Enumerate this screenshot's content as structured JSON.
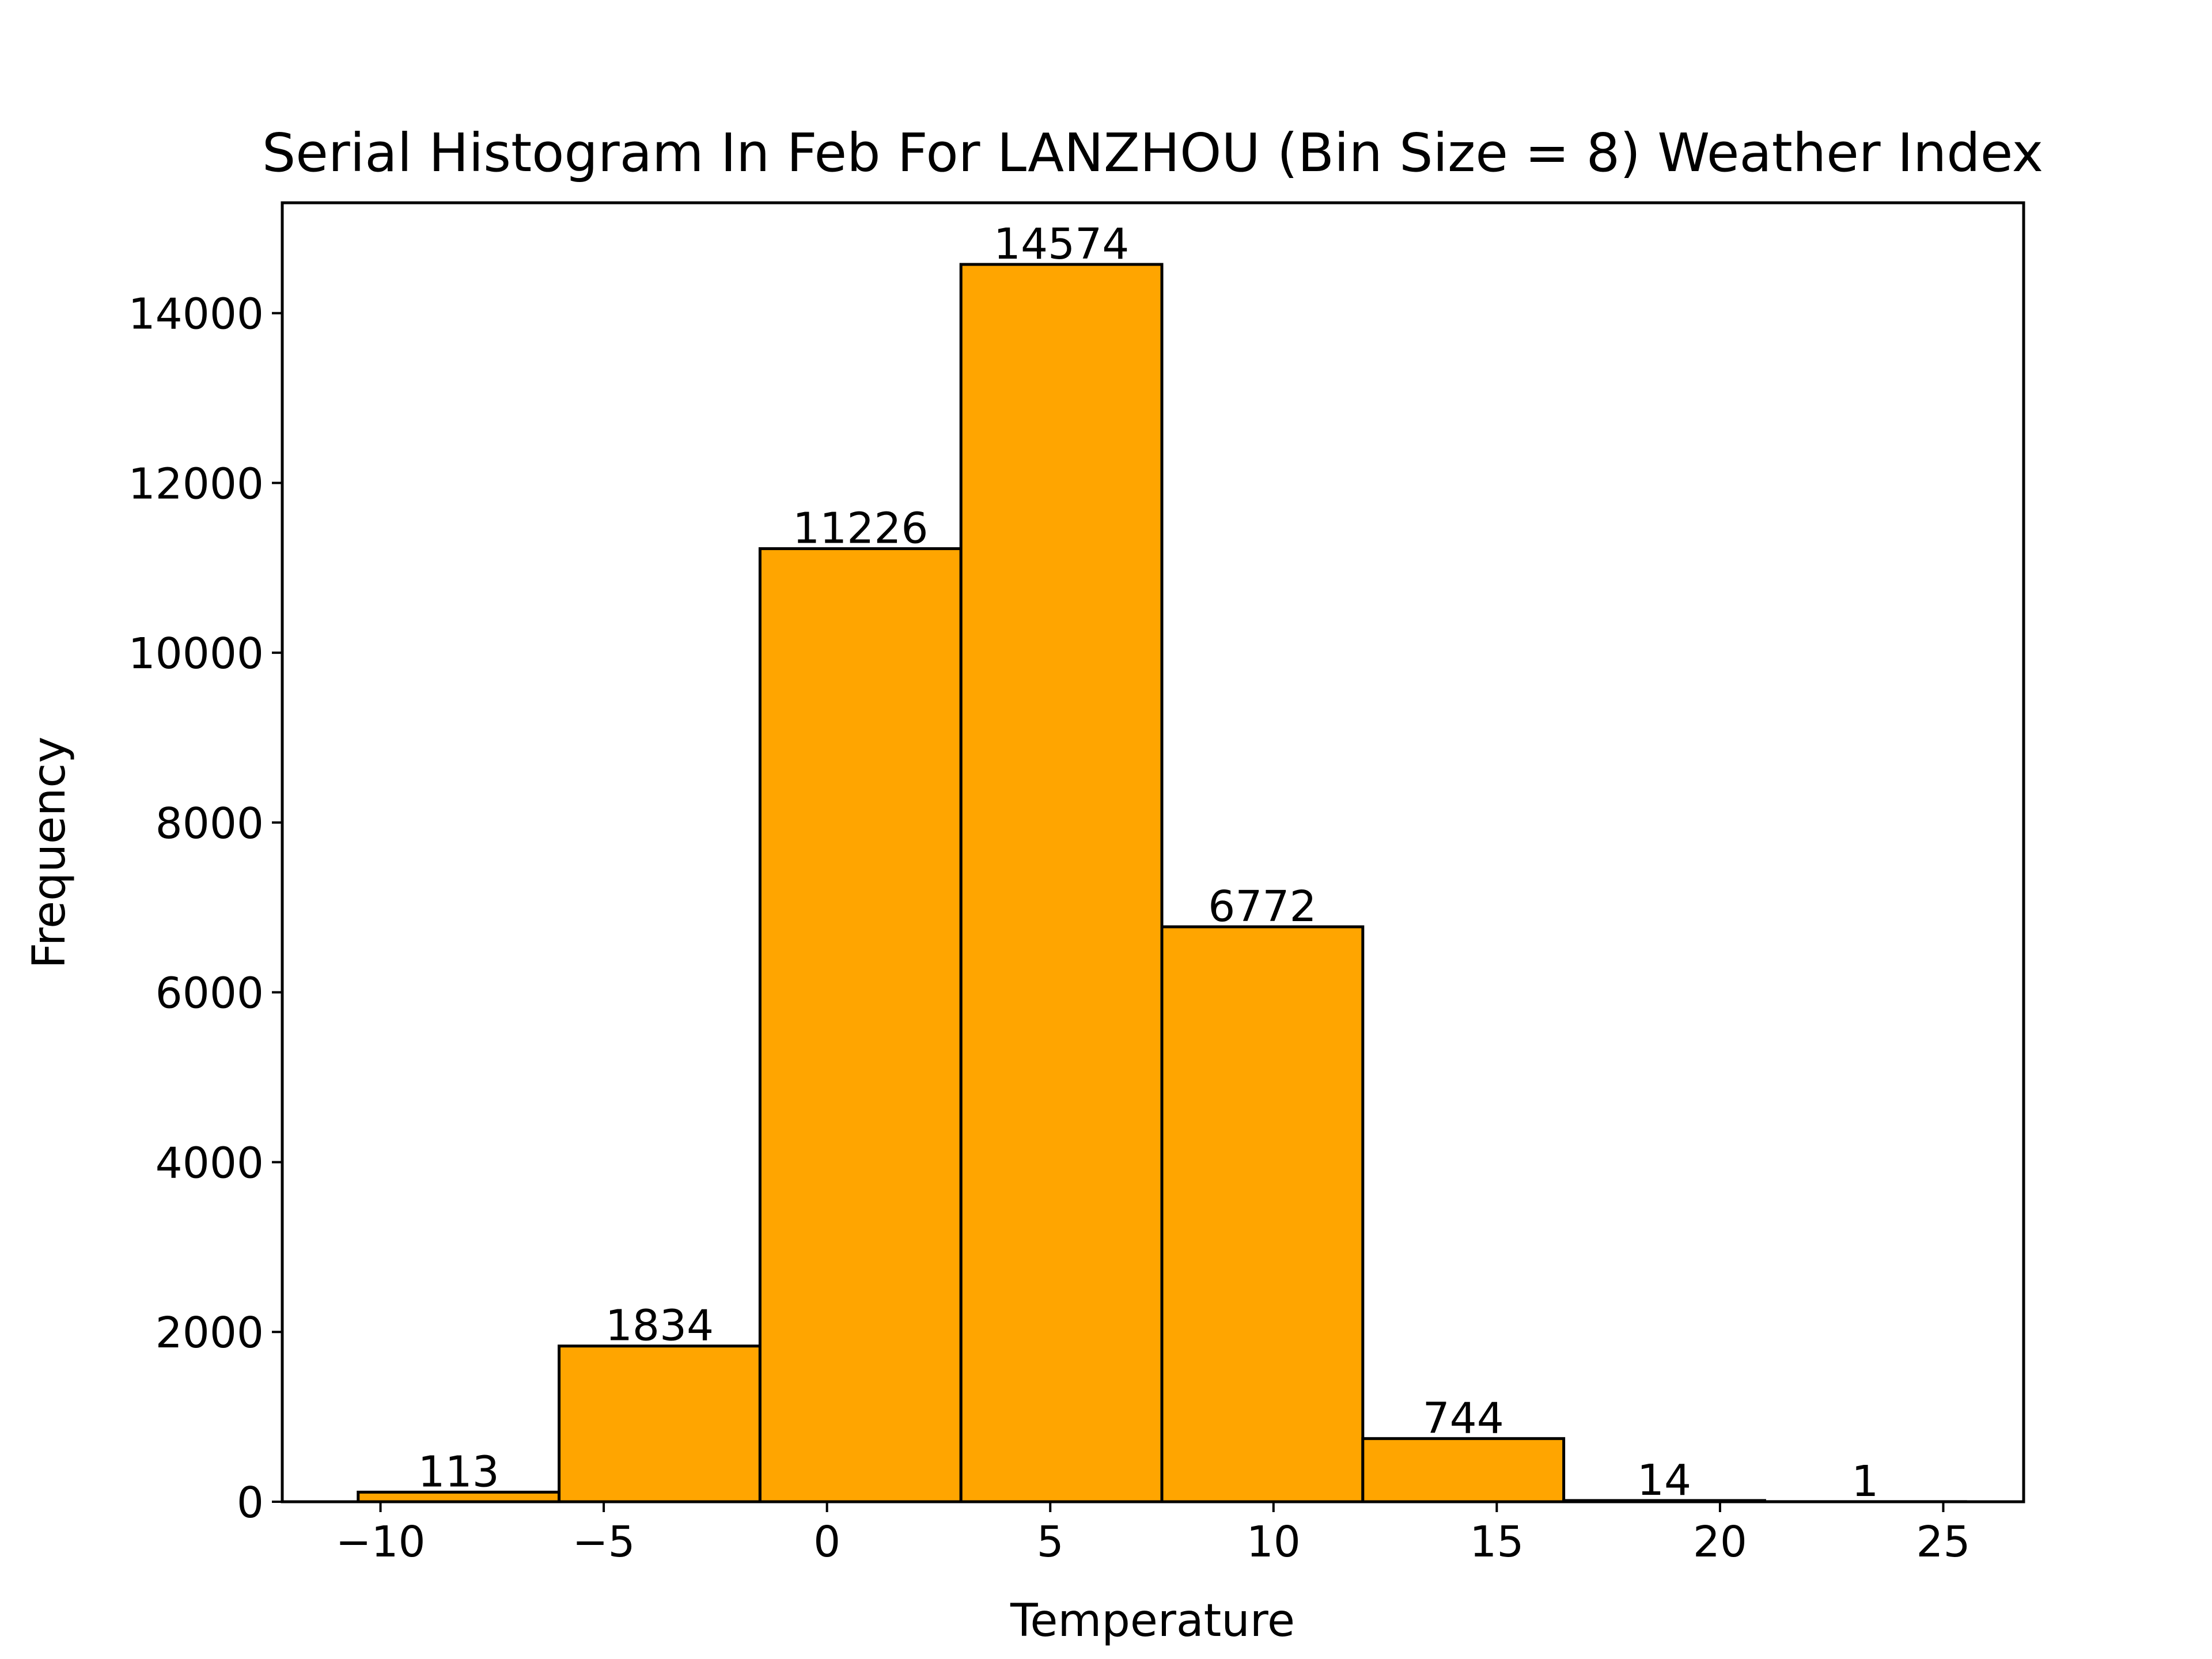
{
  "chart_data": {
    "type": "bar",
    "title": "Serial Histogram In Feb For LANZHOU (Bin Size = 8) Weather Index",
    "xlabel": "Temperature",
    "ylabel": "Frequency",
    "bin_edges": [
      -10.5,
      -6.0,
      -1.5,
      3.0,
      7.5,
      12.0,
      16.5,
      21.0,
      25.5
    ],
    "values": [
      113,
      1834,
      11226,
      14574,
      6772,
      744,
      14,
      1
    ],
    "value_labels": [
      "113",
      "1834",
      "11226",
      "14574",
      "6772",
      "744",
      "14",
      "1"
    ],
    "xlim": [
      -12.2,
      26.8
    ],
    "ylim": [
      0,
      15300
    ],
    "xticks": [
      -10,
      -5,
      0,
      5,
      10,
      15,
      20,
      25
    ],
    "xtick_labels": [
      "−10",
      "−5",
      "0",
      "5",
      "10",
      "15",
      "20",
      "25"
    ],
    "yticks": [
      0,
      2000,
      4000,
      6000,
      8000,
      10000,
      12000,
      14000
    ],
    "ytick_labels": [
      "0",
      "2000",
      "4000",
      "6000",
      "8000",
      "10000",
      "12000",
      "14000"
    ],
    "grid": false,
    "bar_color": "#FFA500",
    "edge_color": "#000000"
  }
}
